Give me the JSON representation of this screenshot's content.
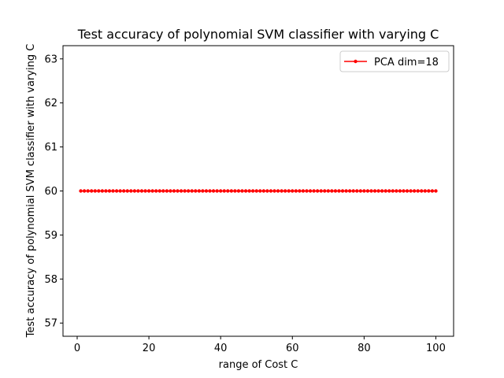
{
  "chart_data": {
    "type": "line",
    "title": "Test accuracy of polynomial SVM classifier with varying C",
    "xlabel": "range of Cost C",
    "ylabel": "Test accuracy of polynomial SVM classifier with varying C",
    "xlim": [
      -3.95,
      104.95
    ],
    "ylim": [
      56.7,
      63.3
    ],
    "xticks": [
      0,
      20,
      40,
      60,
      80,
      100
    ],
    "yticks": [
      57,
      58,
      59,
      60,
      61,
      62,
      63
    ],
    "grid": false,
    "legend_position": "top-right",
    "series": [
      {
        "name": "PCA dim=18",
        "color": "#ff0000",
        "marker": "dot",
        "x": [
          1,
          2,
          3,
          4,
          5,
          6,
          7,
          8,
          9,
          10,
          11,
          12,
          13,
          14,
          15,
          16,
          17,
          18,
          19,
          20,
          21,
          22,
          23,
          24,
          25,
          26,
          27,
          28,
          29,
          30,
          31,
          32,
          33,
          34,
          35,
          36,
          37,
          38,
          39,
          40,
          41,
          42,
          43,
          44,
          45,
          46,
          47,
          48,
          49,
          50,
          51,
          52,
          53,
          54,
          55,
          56,
          57,
          58,
          59,
          60,
          61,
          62,
          63,
          64,
          65,
          66,
          67,
          68,
          69,
          70,
          71,
          72,
          73,
          74,
          75,
          76,
          77,
          78,
          79,
          80,
          81,
          82,
          83,
          84,
          85,
          86,
          87,
          88,
          89,
          90,
          91,
          92,
          93,
          94,
          95,
          96,
          97,
          98,
          99,
          100
        ],
        "y": [
          60,
          60,
          60,
          60,
          60,
          60,
          60,
          60,
          60,
          60,
          60,
          60,
          60,
          60,
          60,
          60,
          60,
          60,
          60,
          60,
          60,
          60,
          60,
          60,
          60,
          60,
          60,
          60,
          60,
          60,
          60,
          60,
          60,
          60,
          60,
          60,
          60,
          60,
          60,
          60,
          60,
          60,
          60,
          60,
          60,
          60,
          60,
          60,
          60,
          60,
          60,
          60,
          60,
          60,
          60,
          60,
          60,
          60,
          60,
          60,
          60,
          60,
          60,
          60,
          60,
          60,
          60,
          60,
          60,
          60,
          60,
          60,
          60,
          60,
          60,
          60,
          60,
          60,
          60,
          60,
          60,
          60,
          60,
          60,
          60,
          60,
          60,
          60,
          60,
          60,
          60,
          60,
          60,
          60,
          60,
          60,
          60,
          60,
          60,
          60
        ]
      }
    ]
  }
}
